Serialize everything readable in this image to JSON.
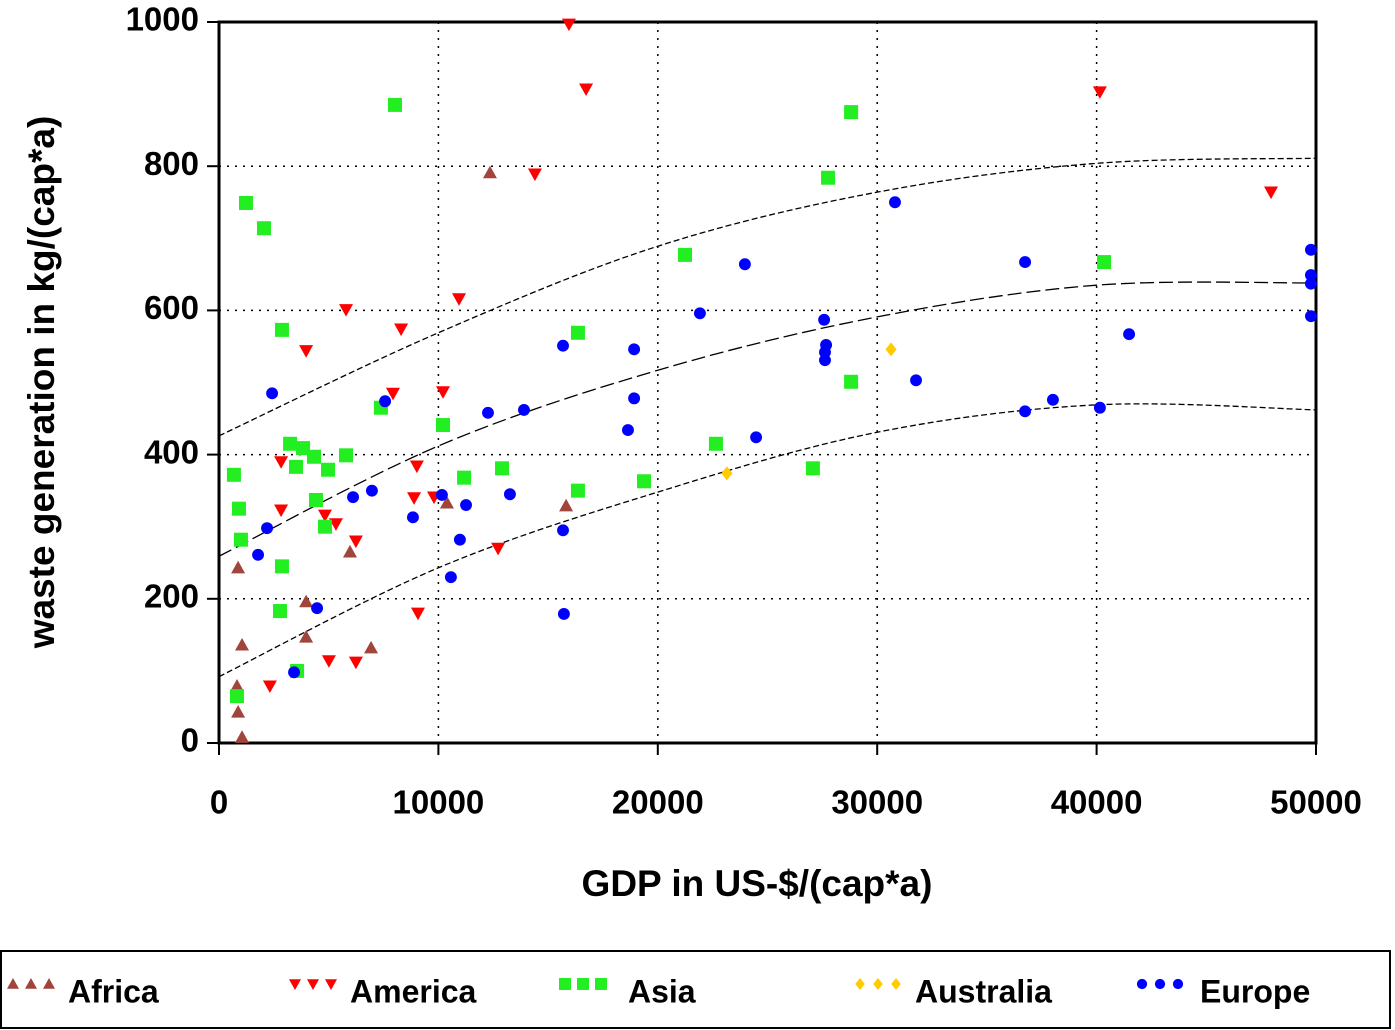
{
  "chart_data": {
    "type": "scatter",
    "x_label": "GDP in US-$/(cap*a)",
    "y_label": "waste  generation  in  kg/(cap*a)",
    "xlim": [
      0,
      50000
    ],
    "ylim": [
      0,
      1000
    ],
    "xticks": [
      0,
      10000,
      20000,
      30000,
      40000,
      50000
    ],
    "yticks": [
      0,
      200,
      400,
      600,
      800,
      1000
    ],
    "grid": true,
    "legend": "bottom",
    "series": [
      {
        "name": "Africa",
        "color": "#a0443c",
        "marker": "triangle-up",
        "x": [
          870,
          1050,
          820,
          870,
          1050,
          3970,
          3970,
          5970,
          6930,
          10390,
          12350,
          15820
        ],
        "values": [
          243,
          136,
          79,
          43,
          8,
          196,
          147,
          265,
          132,
          333,
          791,
          329
        ]
      },
      {
        "name": "America",
        "color": "#ff0000",
        "marker": "triangle-down",
        "x": [
          15950,
          16730,
          14400,
          40150,
          47950,
          10940,
          5790,
          8300,
          3970,
          7930,
          10210,
          2830,
          9020,
          2830,
          4830,
          5330,
          6240,
          9800,
          8890,
          2320,
          5010,
          6240,
          9070,
          12720
        ],
        "values": [
          997,
          907,
          789,
          903,
          764,
          616,
          601,
          574,
          544,
          485,
          487,
          390,
          384,
          323,
          316,
          304,
          280,
          341,
          340,
          79,
          114,
          112,
          180,
          270
        ]
      },
      {
        "name": "Asia",
        "color": "#22ee22",
        "marker": "square",
        "x": [
          1230,
          2050,
          8020,
          28810,
          27760,
          21240,
          40340,
          2870,
          16360,
          28810,
          7380,
          10210,
          3240,
          3830,
          22650,
          4330,
          5790,
          3510,
          4970,
          12900,
          27070,
          680,
          11170,
          19370,
          16360,
          4420,
          910,
          4830,
          1000,
          2870,
          2780,
          3560,
          820
        ],
        "values": [
          749,
          714,
          885,
          875,
          784,
          677,
          667,
          573,
          569,
          501,
          465,
          441,
          415,
          409,
          415,
          397,
          399,
          383,
          379,
          381,
          381,
          372,
          368,
          363,
          350,
          337,
          325,
          300,
          282,
          245,
          183,
          100,
          65
        ]
      },
      {
        "name": "Australia",
        "color": "#ffcc00",
        "marker": "diamond",
        "x": [
          30630,
          23150
        ],
        "values": [
          546,
          374
        ]
      },
      {
        "name": "Europe",
        "color": "#0000ff",
        "marker": "circle",
        "x": [
          30810,
          23970,
          36740,
          21920,
          49770,
          49770,
          49770,
          49770,
          41480,
          27580,
          27670,
          27620,
          27620,
          15680,
          18920,
          31770,
          2420,
          7570,
          18920,
          38010,
          36740,
          40150,
          13900,
          12260,
          18640,
          24480,
          6970,
          6110,
          13260,
          10160,
          11260,
          8840,
          15680,
          2190,
          10980,
          1780,
          10570,
          4470,
          15720,
          3420
        ],
        "values": [
          750,
          664,
          667,
          596,
          684,
          649,
          637,
          592,
          567,
          587,
          552,
          542,
          531,
          551,
          546,
          503,
          485,
          474,
          478,
          476,
          460,
          465,
          462,
          458,
          434,
          424,
          350,
          341,
          345,
          344,
          330,
          313,
          295,
          298,
          282,
          261,
          230,
          187,
          179,
          98
        ]
      }
    ],
    "curves": [
      {
        "x": [
          0,
          10000,
          20000,
          30000,
          40000,
          50000
        ],
        "values": [
          426,
          569,
          689,
          764,
          804,
          811
        ]
      },
      {
        "x": [
          0,
          10000,
          20000,
          30000,
          40000,
          50000
        ],
        "values": [
          259,
          412,
          517,
          591,
          635,
          638
        ]
      },
      {
        "x": [
          0,
          10000,
          20000,
          30000,
          40000,
          50000
        ],
        "values": [
          92,
          243,
          348,
          431,
          469,
          462
        ]
      }
    ]
  }
}
